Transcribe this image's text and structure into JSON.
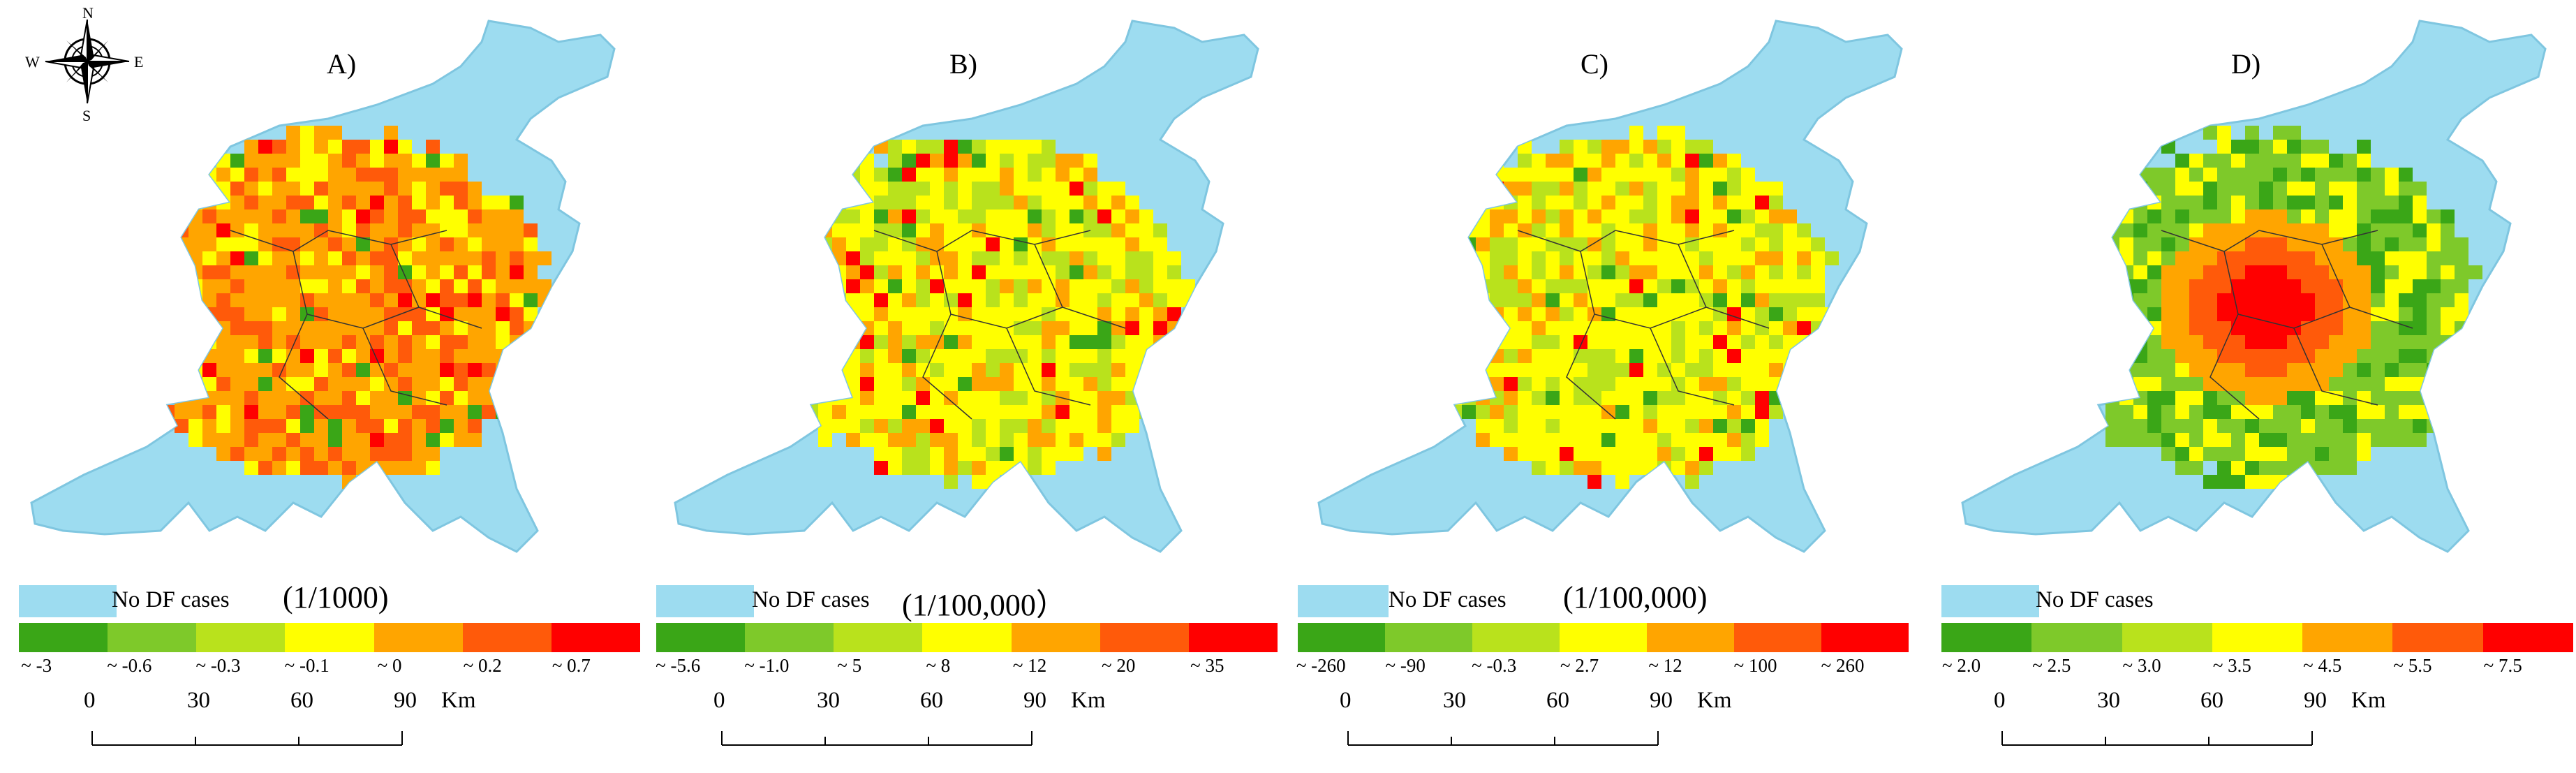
{
  "colors": {
    "no_df": "#9ddcf0",
    "ramp": [
      "#3aa617",
      "#7ec92a",
      "#b9e21c",
      "#ffff00",
      "#ffa500",
      "#ff5a0a",
      "#ff0000"
    ]
  },
  "compass": {
    "n": "N",
    "s": "S",
    "e": "E",
    "w": "W"
  },
  "scale_bar": {
    "ticks": [
      "0",
      "30",
      "60",
      "90"
    ],
    "unit": "Km"
  },
  "panels": [
    {
      "title": "A)",
      "no_df_label": "No DF cases",
      "unit": "(1/1000)",
      "legend_ticks": [
        "~ -3",
        "~ -0.6",
        "~ -0.3",
        "~ -0.1",
        "~ 0",
        "~ 0.2",
        "~ 0.7"
      ],
      "dominant_classes": [
        4,
        5,
        3
      ]
    },
    {
      "title": "B)",
      "no_df_label": "No DF cases",
      "unit": "(1/100,000）",
      "legend_ticks": [
        "~ -5.6",
        "~ -1.0",
        "~ 5",
        "~ 8",
        "~ 12",
        "~ 20",
        "~ 35"
      ],
      "dominant_classes": [
        3,
        2,
        4
      ]
    },
    {
      "title": "C)",
      "no_df_label": "No DF cases",
      "unit": "(1/100,000)",
      "legend_ticks": [
        "~ -260",
        "~ -90",
        "~ -0.3",
        "~ 2.7",
        "~ 12",
        "~ 100",
        "~ 260"
      ],
      "dominant_classes": [
        3,
        2,
        4
      ]
    },
    {
      "title": "D)",
      "no_df_label": "No DF cases",
      "unit": "",
      "legend_ticks": [
        "~ 2.0",
        "~ 2.5",
        "~ 3.0",
        "~ 3.5",
        "~ 4.5",
        "~ 5.5",
        "~ 7.5"
      ],
      "dominant_classes": [
        1,
        3,
        5
      ]
    }
  ]
}
